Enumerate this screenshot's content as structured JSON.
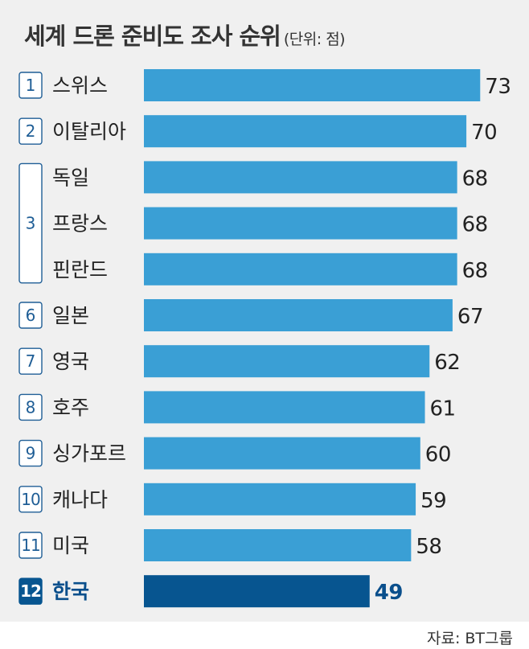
{
  "title": "세계 드론 준비도 조사 순위",
  "unit_note": "(단위: 점)",
  "source": "자료: BT그룹",
  "colors": {
    "bar": "#3a9fd5",
    "highlight_bar": "#075590",
    "highlight_text": "#0a4f8c",
    "background": "#f0f0f0"
  },
  "chart_data": {
    "type": "bar",
    "orientation": "horizontal",
    "categories": [
      "스위스",
      "이탈리아",
      "독일",
      "프랑스",
      "핀란드",
      "일본",
      "영국",
      "호주",
      "싱가포르",
      "캐나다",
      "미국",
      "한국"
    ],
    "values": [
      73,
      70,
      68,
      68,
      68,
      67,
      62,
      61,
      60,
      59,
      58,
      49
    ],
    "highlight": "한국",
    "ranks": [
      {
        "label": "1",
        "rows": 1
      },
      {
        "label": "2",
        "rows": 1
      },
      {
        "label": "3",
        "rows": 3
      },
      {
        "label": "6",
        "rows": 1
      },
      {
        "label": "7",
        "rows": 1
      },
      {
        "label": "8",
        "rows": 1
      },
      {
        "label": "9",
        "rows": 1
      },
      {
        "label": "10",
        "rows": 1
      },
      {
        "label": "11",
        "rows": 1
      },
      {
        "label": "12",
        "rows": 1
      }
    ],
    "grid": false,
    "legend": "none"
  }
}
